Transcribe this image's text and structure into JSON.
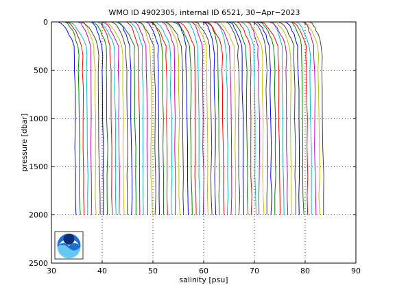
{
  "chart_data": {
    "type": "line",
    "title": "WMO ID 4902305, internal ID 6521, 30−Apr−2023",
    "xlabel": "salinity [psu]",
    "ylabel": "pressure [dbar]",
    "xlim": [
      30,
      90
    ],
    "ylim": [
      2500,
      0
    ],
    "y_reversed": true,
    "xticks": [
      "30",
      "40",
      "50",
      "60",
      "70",
      "80",
      "90"
    ],
    "yticks": [
      "0",
      "500",
      "1000",
      "1500",
      "2000",
      "2500"
    ],
    "grid": true,
    "grid_style": "dotted",
    "legend": "none",
    "profile_series": {
      "count": 63,
      "first_deep_salinity": 34.8,
      "last_deep_salinity": 83.6,
      "max_pressure": 2000,
      "colors": [
        "#0000ff",
        "#008000",
        "#ff0000",
        "#00bfbf",
        "#bf00bf",
        "#bfbf00",
        "#404040"
      ]
    },
    "logo": "noara-logo"
  }
}
